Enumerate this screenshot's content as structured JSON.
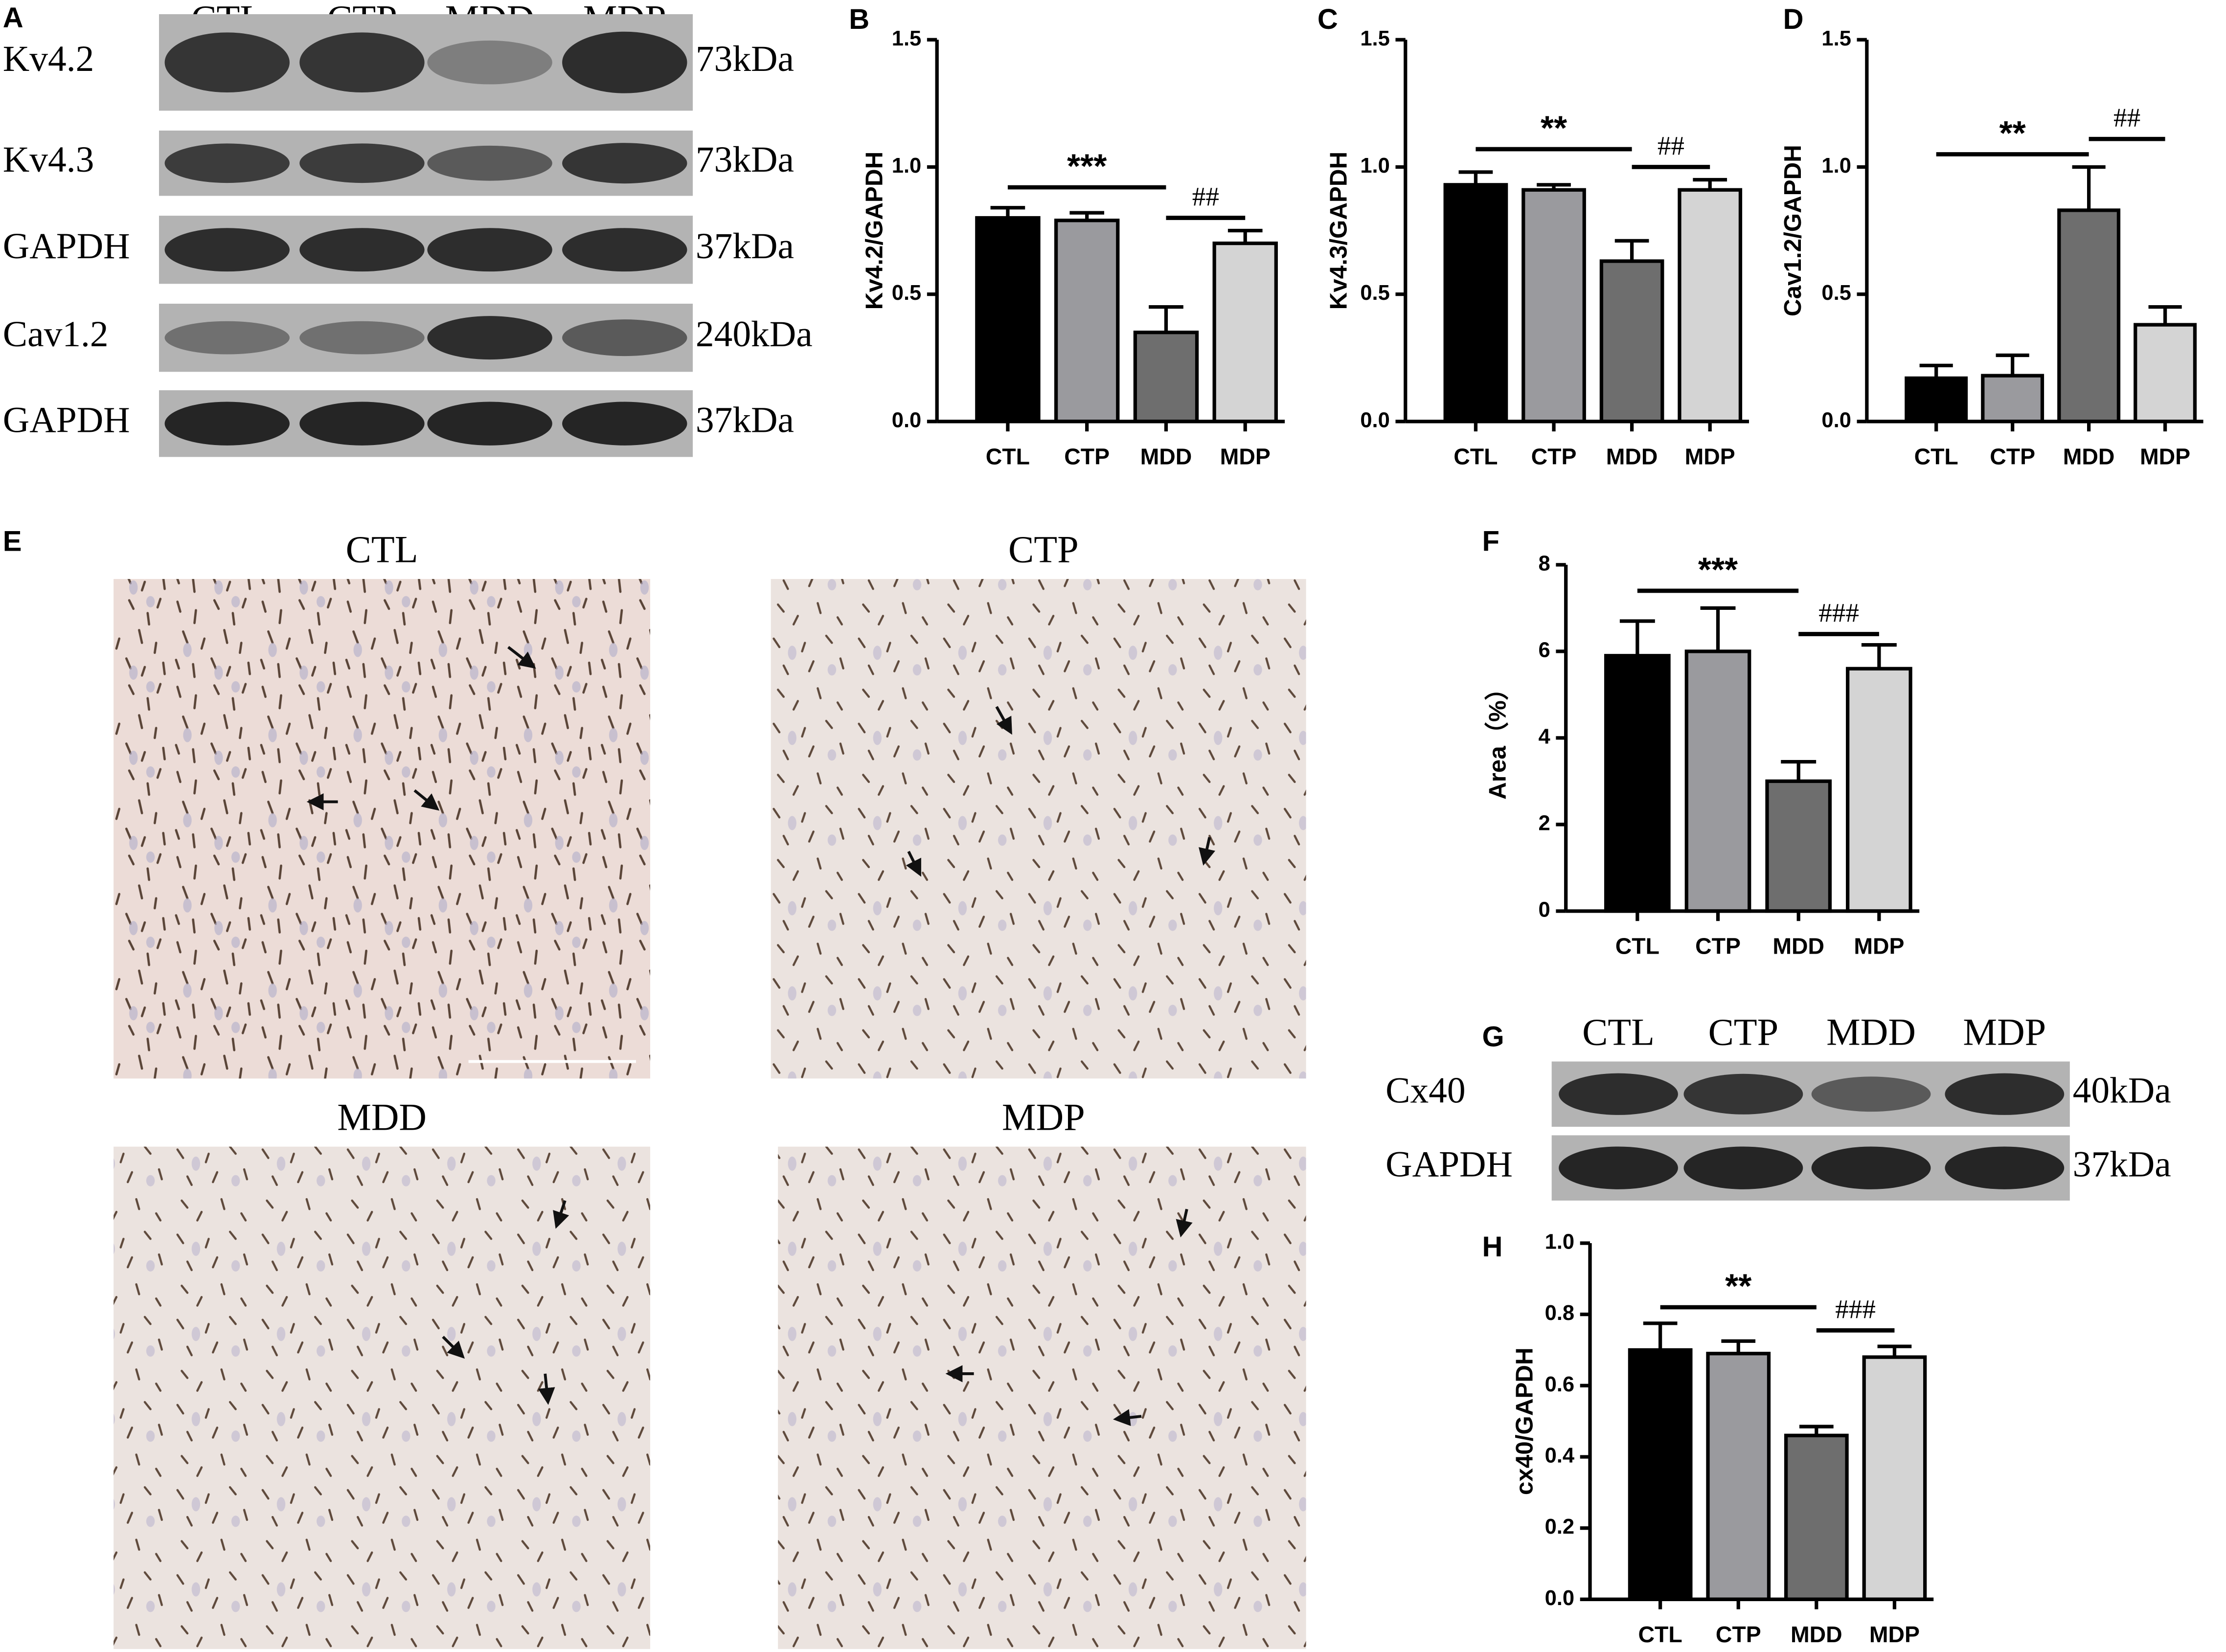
{
  "panels": {
    "A": {
      "letter": "A",
      "lanes": [
        "CTL",
        "CTP",
        "MDD",
        "MDP"
      ],
      "rows": [
        {
          "label": "Kv4.2",
          "size": "73kDa"
        },
        {
          "label": "Kv4.3",
          "size": "73kDa"
        },
        {
          "label": "GAPDH",
          "size": "37kDa"
        },
        {
          "label": "Cav1.2",
          "size": "240kDa"
        },
        {
          "label": "GAPDH",
          "size": "37kDa"
        }
      ]
    },
    "E": {
      "letter": "E",
      "images": [
        "CTL",
        "CTP",
        "MDD",
        "MDP"
      ]
    },
    "G": {
      "letter": "G",
      "lanes": [
        "CTL",
        "CTP",
        "MDD",
        "MDP"
      ],
      "rows": [
        {
          "label": "Cx40",
          "size": "40kDa"
        },
        {
          "label": "GAPDH",
          "size": "37kDa"
        }
      ]
    }
  },
  "chart_data": [
    {
      "type": "bar",
      "panel_label": "B",
      "ylabel": "Kv4.2/GAPDH",
      "categories": [
        "CTL",
        "CTP",
        "MDD",
        "MDP"
      ],
      "values": [
        0.8,
        0.79,
        0.35,
        0.7
      ],
      "errors": [
        0.04,
        0.03,
        0.1,
        0.05
      ],
      "colors": [
        "#000000",
        "#9a9a9e",
        "#6e6e6e",
        "#d4d4d4"
      ],
      "ylim": [
        0,
        1.5
      ],
      "yticks": [
        {
          "value": 0,
          "label": "0.0"
        },
        0.5,
        {
          "value": 1,
          "label": "1.0"
        },
        1.5
      ],
      "annotations": [
        {
          "text": "***",
          "y": 0.92,
          "between": [
            "CTL",
            "MDD"
          ]
        },
        {
          "text": "##",
          "y": 0.8,
          "between": [
            "MDD",
            "MDP"
          ]
        }
      ]
    },
    {
      "type": "bar",
      "panel_label": "C",
      "ylabel": "Kv4.3/GAPDH",
      "categories": [
        "CTL",
        "CTP",
        "MDD",
        "MDP"
      ],
      "values": [
        0.93,
        0.91,
        0.63,
        0.91
      ],
      "errors": [
        0.05,
        0.02,
        0.08,
        0.04
      ],
      "colors": [
        "#000000",
        "#9a9a9e",
        "#6e6e6e",
        "#d4d4d4"
      ],
      "ylim": [
        0,
        1.5
      ],
      "yticks": [
        {
          "value": 0,
          "label": "0.0"
        },
        0.5,
        {
          "value": 1,
          "label": "1.0"
        },
        1.5
      ],
      "annotations": [
        {
          "text": "**",
          "y": 1.07,
          "between": [
            "CTL",
            "MDD"
          ]
        },
        {
          "text": "##",
          "y": 1.0,
          "between": [
            "MDD",
            "MDP"
          ]
        }
      ]
    },
    {
      "type": "bar",
      "panel_label": "D",
      "ylabel": "Cav1.2/GAPDH",
      "categories": [
        "CTL",
        "CTP",
        "MDD",
        "MDP"
      ],
      "values": [
        0.17,
        0.18,
        0.83,
        0.38
      ],
      "errors": [
        0.05,
        0.08,
        0.17,
        0.07
      ],
      "colors": [
        "#000000",
        "#9a9a9e",
        "#6e6e6e",
        "#d4d4d4"
      ],
      "ylim": [
        0,
        1.5
      ],
      "yticks": [
        {
          "value": 0,
          "label": "0.0"
        },
        0.5,
        {
          "value": 1,
          "label": "1.0"
        },
        1.5
      ],
      "annotations": [
        {
          "text": "**",
          "y": 1.05,
          "between": [
            "CTL",
            "MDD"
          ]
        },
        {
          "text": "##",
          "y": 1.11,
          "between": [
            "MDD",
            "MDP"
          ]
        }
      ]
    },
    {
      "type": "bar",
      "panel_label": "F",
      "ylabel": "Area（%）",
      "categories": [
        "CTL",
        "CTP",
        "MDD",
        "MDP"
      ],
      "values": [
        5.9,
        6.0,
        3.0,
        5.6
      ],
      "errors": [
        0.8,
        1.0,
        0.45,
        0.55
      ],
      "colors": [
        "#000000",
        "#9a9a9e",
        "#6e6e6e",
        "#d4d4d4"
      ],
      "ylim": [
        0,
        8
      ],
      "yticks": [
        0,
        2,
        4,
        6,
        8
      ],
      "annotations": [
        {
          "text": "***",
          "y": 7.4,
          "between": [
            "CTL",
            "MDD"
          ]
        },
        {
          "text": "###",
          "y": 6.4,
          "between": [
            "MDD",
            "MDP"
          ]
        }
      ]
    },
    {
      "type": "bar",
      "panel_label": "H",
      "ylabel": "cx40/GAPDH",
      "categories": [
        "CTL",
        "CTP",
        "MDD",
        "MDP"
      ],
      "values": [
        0.7,
        0.69,
        0.46,
        0.68
      ],
      "errors": [
        0.075,
        0.035,
        0.025,
        0.03
      ],
      "colors": [
        "#000000",
        "#9a9a9e",
        "#6e6e6e",
        "#d4d4d4"
      ],
      "ylim": [
        0,
        1
      ],
      "yticks": [
        {
          "value": 0,
          "label": "0.0"
        },
        0.2,
        0.4,
        0.6,
        0.8,
        {
          "value": 1,
          "label": "1.0"
        }
      ],
      "annotations": [
        {
          "text": "**",
          "y": 0.82,
          "between": [
            "CTL",
            "MDD"
          ]
        },
        {
          "text": "###",
          "y": 0.755,
          "between": [
            "MDD",
            "MDP"
          ]
        }
      ]
    }
  ]
}
